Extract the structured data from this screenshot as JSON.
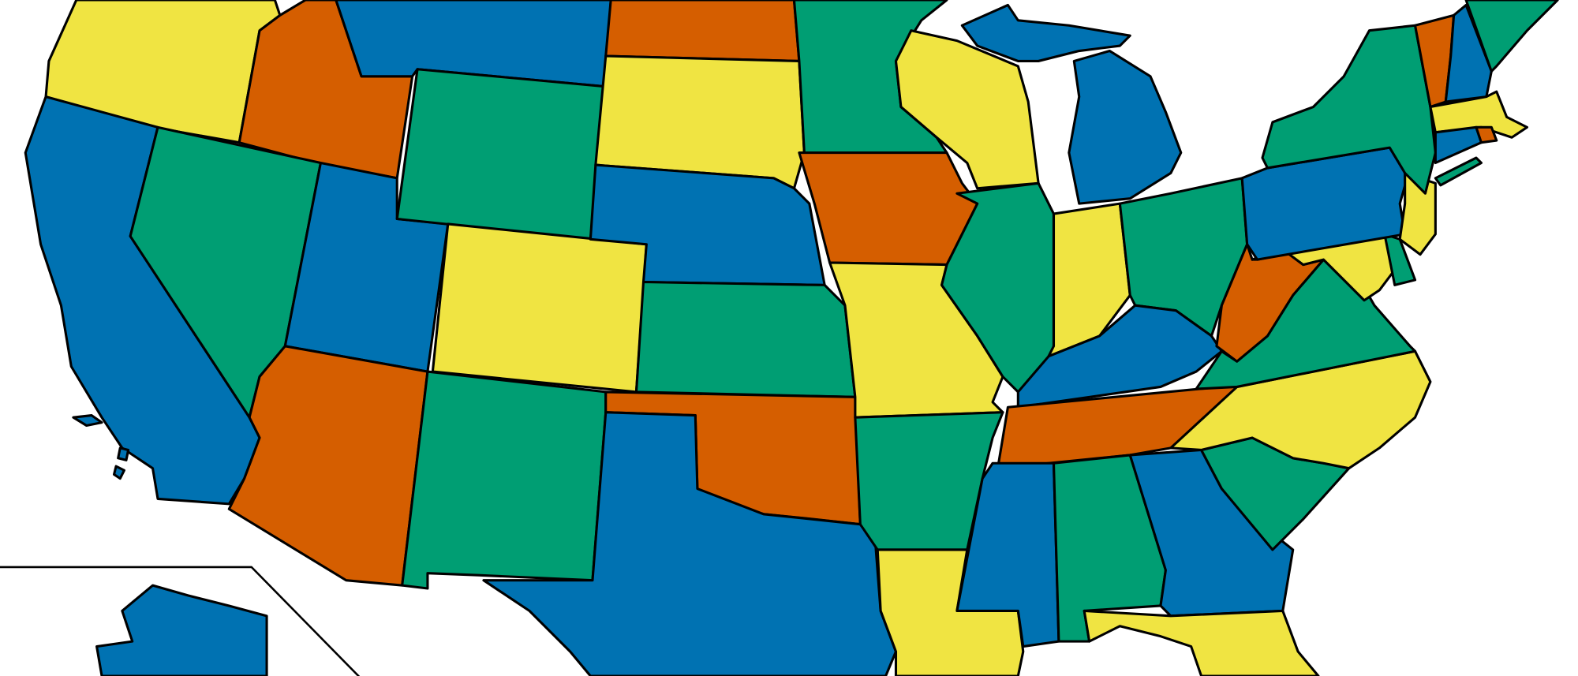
{
  "palette": {
    "yellow": "#F0E442",
    "orange": "#D55E00",
    "blue": "#0072B2",
    "green": "#009E73",
    "border": "#000000",
    "background": "#FFFFFF"
  },
  "map": {
    "type": "four-color map of US states",
    "states": [
      {
        "id": "oregon",
        "color": "yellow"
      },
      {
        "id": "idaho",
        "color": "orange"
      },
      {
        "id": "montana",
        "color": "blue"
      },
      {
        "id": "california",
        "color": "blue"
      },
      {
        "id": "nevada",
        "color": "green"
      },
      {
        "id": "utah",
        "color": "blue"
      },
      {
        "id": "wyoming",
        "color": "green"
      },
      {
        "id": "colorado",
        "color": "yellow"
      },
      {
        "id": "arizona",
        "color": "orange"
      },
      {
        "id": "new-mexico",
        "color": "green"
      },
      {
        "id": "north-dakota",
        "color": "orange"
      },
      {
        "id": "south-dakota",
        "color": "yellow"
      },
      {
        "id": "nebraska",
        "color": "blue"
      },
      {
        "id": "kansas",
        "color": "green"
      },
      {
        "id": "oklahoma",
        "color": "orange"
      },
      {
        "id": "texas",
        "color": "blue"
      },
      {
        "id": "minnesota",
        "color": "green"
      },
      {
        "id": "iowa",
        "color": "orange"
      },
      {
        "id": "missouri",
        "color": "yellow"
      },
      {
        "id": "arkansas",
        "color": "green"
      },
      {
        "id": "louisiana",
        "color": "yellow"
      },
      {
        "id": "wisconsin",
        "color": "yellow"
      },
      {
        "id": "michigan-upper",
        "color": "blue"
      },
      {
        "id": "michigan-lower",
        "color": "blue"
      },
      {
        "id": "illinois",
        "color": "green"
      },
      {
        "id": "indiana",
        "color": "yellow"
      },
      {
        "id": "ohio",
        "color": "green"
      },
      {
        "id": "kentucky",
        "color": "blue"
      },
      {
        "id": "tennessee",
        "color": "orange"
      },
      {
        "id": "mississippi",
        "color": "blue"
      },
      {
        "id": "alabama",
        "color": "green"
      },
      {
        "id": "georgia",
        "color": "blue"
      },
      {
        "id": "florida",
        "color": "yellow"
      },
      {
        "id": "south-carolina",
        "color": "green"
      },
      {
        "id": "north-carolina",
        "color": "yellow"
      },
      {
        "id": "virginia",
        "color": "green"
      },
      {
        "id": "west-virginia",
        "color": "orange"
      },
      {
        "id": "maryland",
        "color": "yellow"
      },
      {
        "id": "delaware",
        "color": "green"
      },
      {
        "id": "pennsylvania",
        "color": "blue"
      },
      {
        "id": "new-jersey",
        "color": "yellow"
      },
      {
        "id": "new-york",
        "color": "green"
      },
      {
        "id": "long-island",
        "color": "green"
      },
      {
        "id": "vermont",
        "color": "orange"
      },
      {
        "id": "new-hampshire",
        "color": "blue"
      },
      {
        "id": "maine",
        "color": "green"
      },
      {
        "id": "massachusetts",
        "color": "yellow"
      },
      {
        "id": "connecticut",
        "color": "blue"
      },
      {
        "id": "rhode-island",
        "color": "orange"
      },
      {
        "id": "alaska",
        "color": "blue"
      },
      {
        "id": "hawaii-1",
        "color": "blue"
      },
      {
        "id": "hawaii-2",
        "color": "blue"
      },
      {
        "id": "hawaii-3",
        "color": "blue"
      }
    ]
  }
}
